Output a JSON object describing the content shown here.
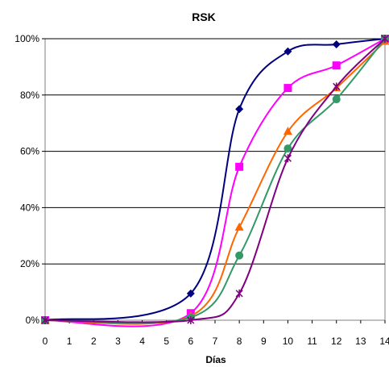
{
  "chart_data": {
    "type": "line",
    "title": "RSK",
    "xlabel": "Días",
    "ylabel": "",
    "xlim": [
      0,
      14
    ],
    "ylim": [
      0,
      100
    ],
    "x_ticks": [
      "0",
      "1",
      "2",
      "3",
      "4",
      "5",
      "6",
      "7",
      "8",
      "9",
      "10",
      "11",
      "12",
      "13",
      "14"
    ],
    "y_ticks": [
      "0%",
      "20%",
      "40%",
      "60%",
      "80%",
      "100%"
    ],
    "grid": "horizontal",
    "legend": "none",
    "series": [
      {
        "color": "#000080",
        "marker": "diamond",
        "x": [
          0,
          6,
          8,
          10,
          12,
          14
        ],
        "values": [
          0,
          9.5,
          75,
          95.5,
          98,
          100
        ]
      },
      {
        "color": "#ff00ff",
        "marker": "square",
        "x": [
          0,
          6,
          8,
          10,
          12,
          14
        ],
        "values": [
          0,
          2.5,
          54.5,
          82.5,
          90.5,
          100
        ]
      },
      {
        "color": "#ff6600",
        "marker": "triangle",
        "x": [
          0,
          6,
          8,
          10,
          12,
          14
        ],
        "values": [
          0,
          1.5,
          33,
          67,
          82.5,
          99
        ]
      },
      {
        "color": "#339966",
        "marker": "circle",
        "x": [
          0,
          6,
          8,
          10,
          12,
          14
        ],
        "values": [
          0,
          1,
          23,
          61,
          78.5,
          100
        ]
      },
      {
        "color": "#800080",
        "marker": "star",
        "x": [
          0,
          6,
          8,
          10,
          12,
          14
        ],
        "values": [
          0,
          0,
          9.5,
          57.5,
          83,
          100
        ]
      }
    ]
  }
}
